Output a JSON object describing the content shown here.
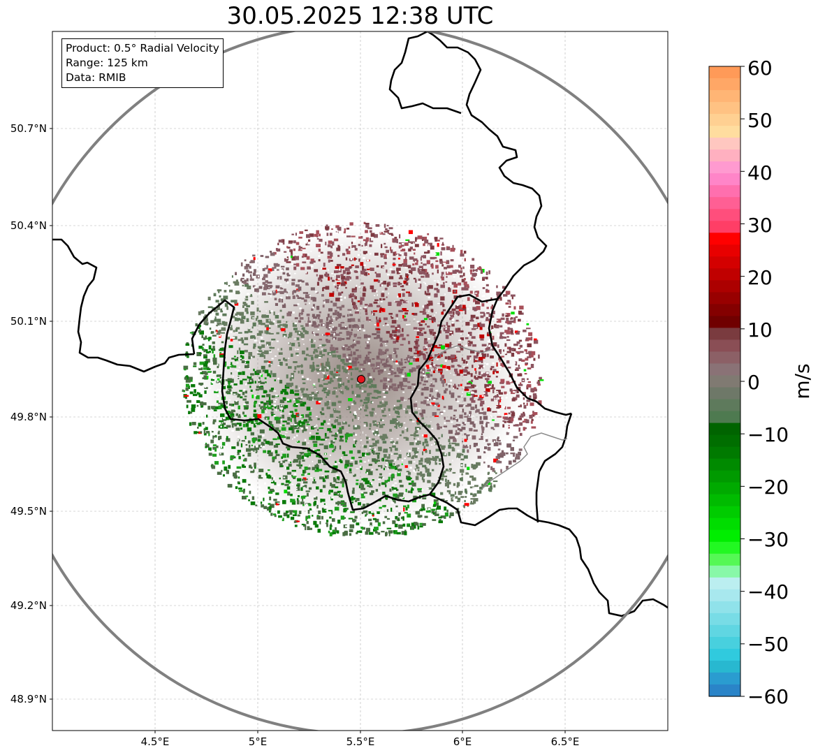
{
  "title": "30.05.2025 12:38 UTC",
  "info": {
    "product_line": "Product: 0.5° Radial Velocity",
    "range_line": "Range: 125 km",
    "data_line": "Data: RMIB"
  },
  "axes": {
    "lat_ticks": [
      "50.7°N",
      "50.4°N",
      "50.1°N",
      "49.8°N",
      "49.5°N",
      "49.2°N",
      "48.9°N"
    ],
    "lon_ticks": [
      "4.5°E",
      "5°E",
      "5.5°E",
      "6°E",
      "6.5°E"
    ]
  },
  "colorbar": {
    "unit_label": "m/s",
    "ticks": [
      "60",
      "50",
      "40",
      "30",
      "20",
      "10",
      "0",
      "−10",
      "−20",
      "−30",
      "−40",
      "−50",
      "−60"
    ],
    "range": [
      -60,
      60
    ]
  },
  "radar": {
    "site_marker_color": "#e8141c",
    "range_ring_color": "#808080"
  }
}
